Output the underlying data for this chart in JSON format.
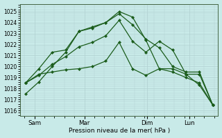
{
  "bg_color": "#c8eae8",
  "grid_color": "#b0d0d0",
  "line_color": "#1a5c1a",
  "xlabel": "Pression niveau de la mer( hPa )",
  "ylim": [
    1015.5,
    1025.7
  ],
  "yticks": [
    1016,
    1017,
    1018,
    1019,
    1020,
    1021,
    1022,
    1023,
    1024,
    1025
  ],
  "day_labels": [
    "Sam",
    "Mar",
    "Dim",
    "Lun"
  ],
  "series": [
    [
      1017.5,
      1018.6,
      1020.0,
      1021.3,
      1023.2,
      1023.6,
      1024.0,
      1025.0,
      1024.5,
      1022.4,
      1019.8,
      1019.5,
      1019.0,
      1018.5,
      1016.5
    ],
    [
      1018.5,
      1019.8,
      1021.3,
      1021.5,
      1023.2,
      1023.5,
      1024.0,
      1024.8,
      1023.8,
      1022.5,
      1021.7,
      1020.0,
      1019.5,
      1019.5,
      1016.5
    ],
    [
      1018.5,
      1019.2,
      1020.2,
      1020.9,
      1021.8,
      1022.2,
      1022.8,
      1024.2,
      1022.3,
      1021.3,
      1022.3,
      1021.5,
      1019.3,
      1019.3,
      1016.5
    ],
    [
      1018.5,
      1019.3,
      1019.5,
      1019.7,
      1019.8,
      1020.0,
      1020.5,
      1022.2,
      1019.8,
      1019.2,
      1019.8,
      1019.8,
      1019.3,
      1018.3,
      1016.5
    ]
  ]
}
